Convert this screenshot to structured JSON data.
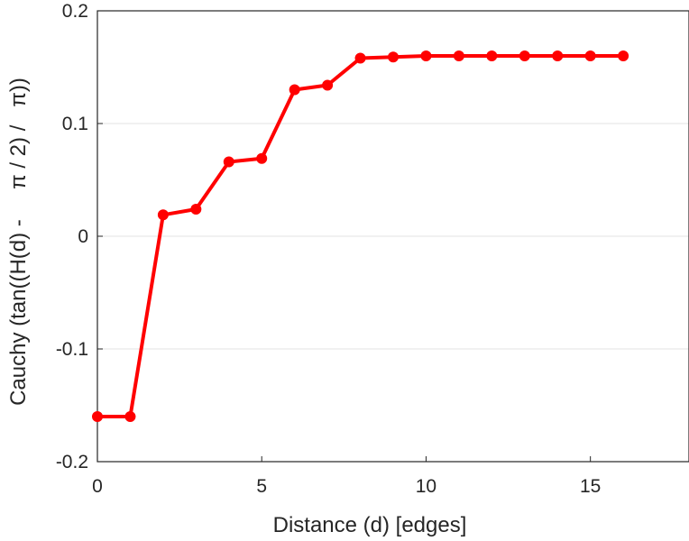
{
  "chart_data": {
    "type": "line",
    "title": "",
    "xlabel": "Distance (d) [edges]",
    "ylabel": "Cauchy (tan((H(d) -     π / 2) /   π))",
    "xlim": [
      0,
      18
    ],
    "ylim": [
      -0.2,
      0.2
    ],
    "xticks": [
      0,
      5,
      10,
      15
    ],
    "yticks": [
      -0.2,
      -0.1,
      0,
      0.1,
      0.2
    ],
    "xtick_labels": [
      "0",
      "5",
      "10",
      "15"
    ],
    "ytick_labels": [
      "-0.2",
      "-0.1",
      "0",
      "0.1",
      "0.2"
    ],
    "grid": "horizontal",
    "series": [
      {
        "color": "#ff0000",
        "marker": "circle",
        "x": [
          0,
          1,
          2,
          3,
          4,
          5,
          6,
          7,
          8,
          9,
          10,
          11,
          12,
          13,
          14,
          15,
          16
        ],
        "y": [
          -0.16,
          -0.16,
          0.019,
          0.024,
          0.066,
          0.069,
          0.13,
          0.134,
          0.158,
          0.159,
          0.16,
          0.16,
          0.16,
          0.16,
          0.16,
          0.16,
          0.16
        ]
      }
    ]
  }
}
